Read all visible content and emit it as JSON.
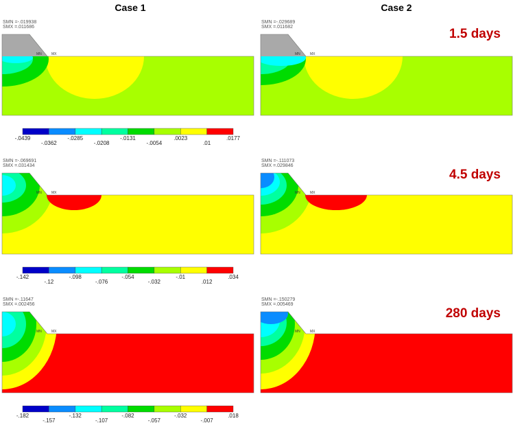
{
  "headers": {
    "case1": "Case 1",
    "case2": "Case 2"
  },
  "rows": [
    {
      "time": "1.5 days",
      "panels": [
        {
          "smn": "SMN =-.019938",
          "smx": "SMX =.011686",
          "mn": "MN",
          "mx": "MX"
        },
        {
          "smn": "SMN =-.029689",
          "smx": "SMX =.011682",
          "mn": "MN",
          "mx": "MX"
        }
      ],
      "legend": [
        "-.0439",
        "-.0362",
        "-.0285",
        "-.0208",
        "-.0131",
        "-.0054",
        ".0023",
        ".01",
        ".0177"
      ]
    },
    {
      "time": "4.5 days",
      "panels": [
        {
          "smn": "SMN =-.069691",
          "smx": "SMX =.031434",
          "mn": "MN",
          "mx": "MX"
        },
        {
          "smn": "SMN =-.111073",
          "smx": "SMX =.029846",
          "mn": "MN",
          "mx": "MX"
        }
      ],
      "legend": [
        "-.142",
        "-.12",
        "-.098",
        "-.076",
        "-.054",
        "-.032",
        "-.01",
        ".012",
        ".034"
      ]
    },
    {
      "time": "280 days",
      "panels": [
        {
          "smn": "SMN =-.11647",
          "smx": "SMX =.002456",
          "mn": "MN",
          "mx": "MX"
        },
        {
          "smn": "SMN =-.150279",
          "smx": "SMX =.005469",
          "mn": "MN",
          "mx": "MX"
        }
      ],
      "legend": [
        "-.182",
        "-.157",
        "-.132",
        "-.107",
        "-.082",
        "-.057",
        "-.032",
        "-.007",
        ".018"
      ]
    }
  ]
}
